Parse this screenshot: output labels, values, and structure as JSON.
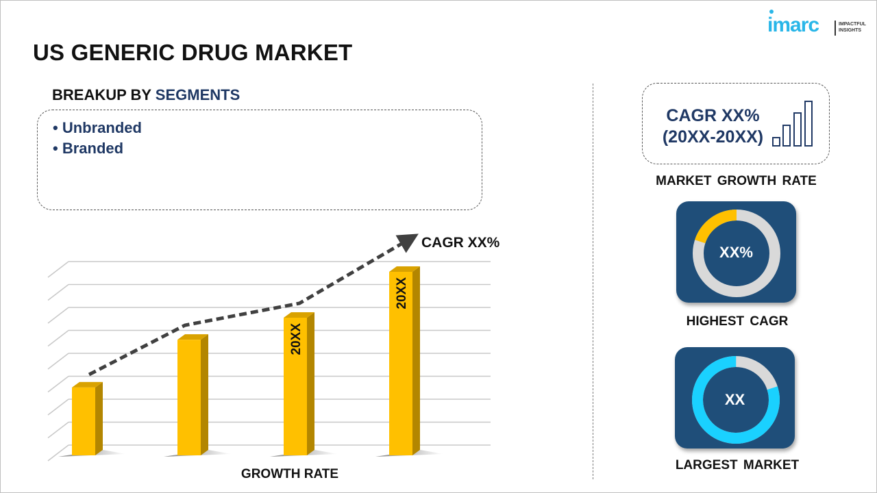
{
  "header": {
    "title": "US GENERIC DRUG MARKET",
    "logo": {
      "word": "imarc",
      "tagline_line1": "IMPACTFUL",
      "tagline_line2": "INSIGHTS"
    }
  },
  "segments": {
    "heading_prefix": "BREAKUP BY ",
    "heading_highlight": "SEGMENTS",
    "items": [
      "• Unbranded",
      "• Branded"
    ]
  },
  "chart_data": {
    "type": "bar",
    "style": "3d-column with dashed trend arrow",
    "categories": [
      "",
      "",
      "",
      ""
    ],
    "values": [
      37,
      63,
      75,
      100
    ],
    "bar_labels": [
      "",
      "",
      "20XX",
      "20XX"
    ],
    "trend_label": "CAGR XX%",
    "xlabel": "GROWTH RATE",
    "ylabel": "",
    "grid": true,
    "colors": {
      "bar_front": "#ffc000",
      "bar_side": "#b38600",
      "bar_top": "#d9a200",
      "trend": "#404040",
      "grid": "#c8c8c8"
    }
  },
  "sidebar": {
    "growth": {
      "line1": "CAGR XX%",
      "line2": "(20XX-20XX)",
      "icon": "bar-growth-icon",
      "label": "MARKET GROWTH RATE"
    },
    "highest_cagr": {
      "value": "XX%",
      "label": "HIGHEST CAGR",
      "fill_fraction": 0.2,
      "fill_color": "#ffc000"
    },
    "largest_market": {
      "value": "XX",
      "label": "LARGEST MARKET",
      "fill_fraction": 0.8,
      "fill_color": "#1ad1ff"
    }
  },
  "colors": {
    "navy": "#1f4e79",
    "text_navy": "#1f3864",
    "ring_gray": "#d9d9d9",
    "logo_blue": "#29b6e8"
  }
}
